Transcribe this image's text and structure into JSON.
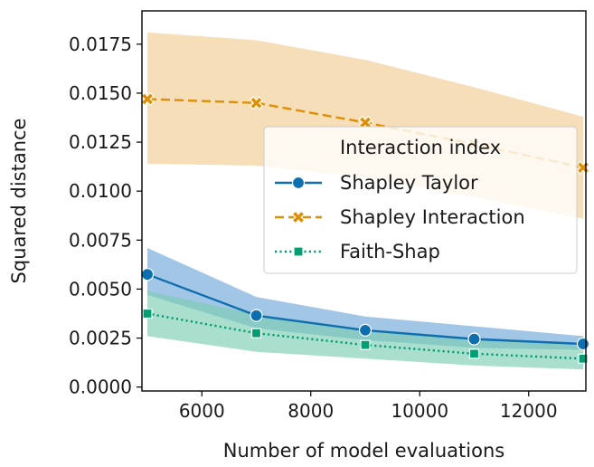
{
  "chart_data": {
    "type": "line",
    "title": "",
    "xlabel": "Number of model evaluations",
    "ylabel": "Squared distance",
    "xlim": [
      4900,
      13050
    ],
    "ylim": [
      -0.0002,
      0.0192
    ],
    "xticks": [
      6000,
      8000,
      10000,
      12000
    ],
    "xtick_labels": [
      "6000",
      "8000",
      "10000",
      "12000"
    ],
    "yticks": [
      0.0,
      0.0025,
      0.005,
      0.0075,
      0.01,
      0.0125,
      0.015,
      0.0175
    ],
    "ytick_labels": [
      "0.0000",
      "0.0025",
      "0.0050",
      "0.0075",
      "0.0100",
      "0.0125",
      "0.0150",
      "0.0175"
    ],
    "grid": false,
    "legend": {
      "title": "Interaction index",
      "position": "center-right"
    },
    "x": [
      5000,
      7000,
      9000,
      11000,
      13000
    ],
    "series": [
      {
        "name": "Shapley Taylor",
        "color": "#0d6eb0",
        "fill": "#6fa8d8",
        "marker": "circle",
        "line": "solid",
        "values": [
          0.00575,
          0.00365,
          0.0029,
          0.00245,
          0.0022
        ],
        "lower": [
          0.0047,
          0.003,
          0.0024,
          0.002,
          0.0019
        ],
        "upper": [
          0.0071,
          0.0046,
          0.0036,
          0.0031,
          0.0026
        ]
      },
      {
        "name": "Shapley Interaction",
        "color": "#de8f05",
        "fill": "#f1cd93",
        "marker": "x",
        "line": "dashed",
        "values": [
          0.0147,
          0.0145,
          0.0135,
          0.0124,
          0.0112
        ],
        "lower": [
          0.0114,
          0.0113,
          0.0107,
          0.0097,
          0.0086
        ],
        "upper": [
          0.0181,
          0.0177,
          0.0167,
          0.0153,
          0.0138
        ]
      },
      {
        "name": "Faith-Shap",
        "color": "#029e73",
        "fill": "#7ccdb2",
        "marker": "square",
        "line": "dotted",
        "values": [
          0.00375,
          0.00275,
          0.00215,
          0.0017,
          0.00145
        ],
        "lower": [
          0.0026,
          0.0018,
          0.00145,
          0.0011,
          0.0009
        ],
        "upper": [
          0.0049,
          0.0037,
          0.0029,
          0.0025,
          0.0021
        ]
      }
    ]
  }
}
